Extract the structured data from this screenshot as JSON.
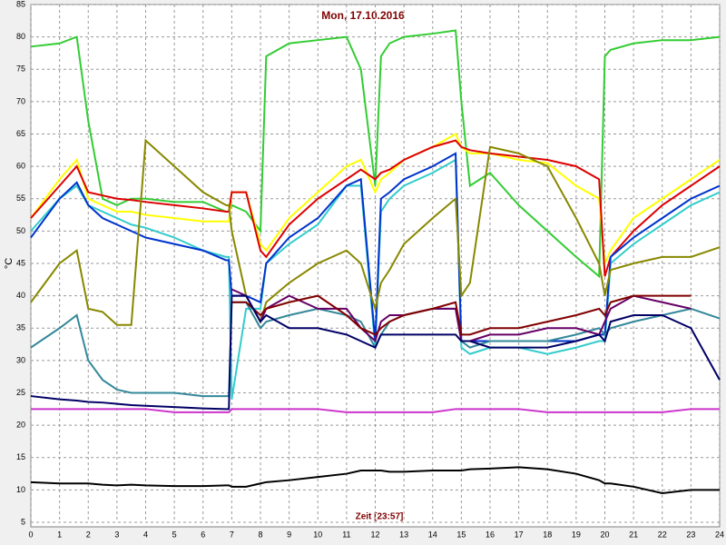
{
  "chart_data": {
    "type": "line",
    "title": "Mon, 17.10.2016",
    "x_label": "Zeit [23:57]",
    "y_label": "°C",
    "x": [
      0,
      1,
      1.6,
      2,
      2.5,
      3,
      3.5,
      4,
      5,
      6,
      6.8,
      6.9,
      7,
      7.5,
      8,
      8.2,
      9,
      10,
      11,
      11.5,
      12,
      12.2,
      12.5,
      13,
      14,
      14.8,
      15,
      15.3,
      16,
      17,
      18,
      19,
      19.8,
      20,
      20.2,
      21,
      22,
      23,
      24
    ],
    "series": [
      {
        "color": "#33cc33",
        "values": [
          78.5,
          79,
          80,
          67,
          55,
          54,
          55,
          55,
          54.5,
          54.5,
          53,
          53,
          54,
          53,
          50,
          77,
          79,
          79.5,
          80,
          75,
          57,
          77,
          79,
          80,
          80.5,
          81,
          70,
          57,
          59,
          54,
          50,
          46,
          43,
          77,
          78,
          79,
          79.5,
          79.5,
          80
        ]
      },
      {
        "color": "#ffff00",
        "values": [
          52,
          58,
          61,
          55,
          54,
          53,
          53,
          52.5,
          52,
          51.5,
          51.5,
          51.5,
          56,
          56,
          48,
          47,
          52,
          56,
          60,
          61,
          56,
          58,
          59,
          61,
          63,
          65,
          63,
          62,
          62,
          61,
          60.5,
          57,
          55,
          45,
          47,
          52,
          55,
          58,
          61
        ]
      },
      {
        "color": "#dd0000",
        "values": [
          52,
          57,
          60,
          56,
          55.5,
          55,
          54.8,
          54.5,
          54,
          53.5,
          53,
          53,
          56,
          56,
          47,
          46,
          51,
          55,
          58,
          59.5,
          58,
          59,
          59.5,
          61,
          63,
          64,
          63,
          62.5,
          62,
          61.5,
          61,
          60,
          58,
          43,
          46,
          50,
          54,
          57,
          60
        ]
      },
      {
        "color": "#33cccc",
        "values": [
          50,
          55,
          57,
          54,
          53,
          52,
          51,
          50.5,
          49,
          47,
          46,
          46,
          24,
          38,
          38,
          45,
          48,
          51,
          57,
          57,
          32,
          53,
          55,
          57,
          59,
          61,
          32,
          31,
          32,
          32,
          31,
          32,
          33,
          33,
          45,
          48,
          51,
          54,
          56
        ]
      },
      {
        "color": "#0033cc",
        "values": [
          49,
          55,
          57.5,
          54,
          52,
          51,
          50,
          49,
          48,
          47,
          45.5,
          45.5,
          40,
          40,
          39,
          45,
          49,
          52,
          57,
          58,
          33,
          55,
          56,
          58,
          60,
          62,
          33,
          33,
          33,
          33,
          33,
          33,
          34,
          34,
          46,
          49,
          52,
          55,
          57
        ]
      },
      {
        "color": "#888800",
        "values": [
          39,
          45,
          47,
          38,
          37.5,
          35.5,
          35.5,
          64,
          60,
          56,
          54,
          54,
          50,
          40,
          36,
          39,
          42,
          45,
          47,
          45,
          38,
          42,
          44,
          48,
          52,
          55,
          40,
          42,
          63,
          62,
          60,
          52,
          45,
          40,
          44,
          45,
          46,
          46,
          47.5
        ]
      },
      {
        "color": "#338899",
        "values": [
          32,
          35,
          37,
          30,
          27,
          25.5,
          25,
          25,
          25,
          24.5,
          24.5,
          24.5,
          39,
          39,
          35,
          36,
          37,
          38,
          37,
          36,
          32,
          34,
          36,
          37,
          38,
          38,
          33,
          32,
          33,
          33,
          33,
          34,
          35,
          34,
          35,
          36,
          37,
          38,
          36.5
        ]
      },
      {
        "color": "#660066",
        "values": [
          null,
          null,
          null,
          null,
          null,
          null,
          null,
          null,
          null,
          null,
          null,
          null,
          41,
          40,
          36,
          38,
          40,
          38,
          38,
          35,
          33,
          36,
          37,
          37,
          38,
          38,
          33,
          33,
          34,
          34,
          35,
          35,
          34,
          36,
          38,
          40,
          39,
          38,
          null
        ]
      },
      {
        "color": "#800000",
        "values": [
          null,
          null,
          null,
          null,
          null,
          null,
          null,
          null,
          null,
          null,
          null,
          null,
          39,
          39,
          37,
          38,
          39,
          40,
          37,
          35,
          34,
          35,
          36,
          37,
          38,
          39,
          34,
          34,
          35,
          35,
          36,
          37,
          38,
          37,
          39,
          40,
          40,
          40,
          null
        ]
      },
      {
        "color": "#000066",
        "values": [
          24.5,
          24,
          23.8,
          23.6,
          23.5,
          23.3,
          23.1,
          23,
          22.8,
          22.6,
          22.5,
          22.5,
          40,
          40,
          36,
          37,
          35,
          35,
          34,
          33,
          32,
          34,
          34,
          34,
          34,
          34,
          33,
          33,
          32,
          32,
          32,
          33,
          34,
          33,
          36,
          37,
          37,
          35,
          27
        ]
      },
      {
        "color": "#cc33cc",
        "values": [
          22.5,
          22.5,
          22.5,
          22.5,
          22.5,
          22.5,
          22.5,
          22.5,
          22,
          22,
          22,
          22,
          22.5,
          22.5,
          22.5,
          22.5,
          22.5,
          22.5,
          22,
          22,
          22,
          22,
          22,
          22,
          22,
          22.5,
          22.5,
          22.5,
          22.5,
          22.5,
          22,
          22,
          22,
          22,
          22,
          22,
          22,
          22.5,
          22.5
        ]
      },
      {
        "color": "#000000",
        "values": [
          11.2,
          11,
          11,
          11,
          10.8,
          10.7,
          10.8,
          10.7,
          10.6,
          10.6,
          10.7,
          10.7,
          10.5,
          10.5,
          11,
          11.2,
          11.5,
          12,
          12.5,
          13,
          13,
          13,
          12.8,
          12.8,
          13,
          13,
          13,
          13.2,
          13.3,
          13.5,
          13.2,
          12.5,
          11.5,
          11,
          11,
          10.5,
          9.5,
          10,
          10
        ]
      }
    ],
    "xlim": [
      0,
      24
    ],
    "xticks": [
      0,
      1,
      2,
      3,
      4,
      5,
      6,
      7,
      8,
      9,
      10,
      11,
      12,
      13,
      14,
      15,
      16,
      17,
      18,
      19,
      20,
      21,
      22,
      23,
      24
    ],
    "ylim": [
      5,
      85
    ],
    "yticks": [
      5,
      10,
      15,
      20,
      25,
      30,
      35,
      40,
      45,
      50,
      55,
      60,
      65,
      70,
      75,
      80,
      85
    ],
    "grid": true
  }
}
